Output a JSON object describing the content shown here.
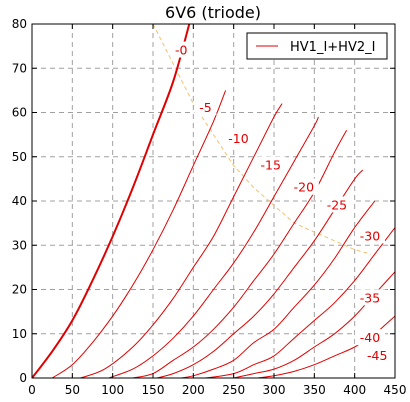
{
  "chart_data": {
    "type": "line",
    "title": "6V6  (triode)",
    "xlim": [
      0,
      450
    ],
    "ylim": [
      0,
      80
    ],
    "x_ticks": [
      "0",
      "50",
      "100",
      "150",
      "200",
      "250",
      "300",
      "350",
      "400",
      "450"
    ],
    "y_ticks": [
      "0",
      "10",
      "20",
      "30",
      "40",
      "50",
      "60",
      "70",
      "80"
    ],
    "grid": true,
    "legend": {
      "position": "top-right",
      "entries": [
        "HV1_I+HV2_I"
      ]
    },
    "colors": {
      "curves": "#e00000",
      "load_line": "#f0c070",
      "grid": "#a0a0a0"
    },
    "series": [
      {
        "label": "-0",
        "points": [
          [
            0,
            0
          ],
          [
            25,
            6
          ],
          [
            50,
            13
          ],
          [
            75,
            22
          ],
          [
            100,
            32
          ],
          [
            125,
            43
          ],
          [
            150,
            55
          ],
          [
            175,
            67
          ],
          [
            195,
            80
          ]
        ]
      },
      {
        "label": "-5",
        "points": [
          [
            25,
            0
          ],
          [
            50,
            3
          ],
          [
            75,
            8
          ],
          [
            100,
            14
          ],
          [
            125,
            21
          ],
          [
            150,
            29
          ],
          [
            175,
            38
          ],
          [
            200,
            48
          ],
          [
            225,
            58
          ],
          [
            240,
            65
          ]
        ]
      },
      {
        "label": "-10",
        "points": [
          [
            60,
            0
          ],
          [
            90,
            2
          ],
          [
            125,
            7
          ],
          [
            150,
            12
          ],
          [
            175,
            18
          ],
          [
            200,
            25
          ],
          [
            225,
            32
          ],
          [
            250,
            41
          ],
          [
            275,
            50
          ],
          [
            300,
            59
          ],
          [
            310,
            62
          ]
        ]
      },
      {
        "label": "-15",
        "points": [
          [
            95,
            0
          ],
          [
            125,
            2
          ],
          [
            150,
            5
          ],
          [
            175,
            9
          ],
          [
            200,
            14
          ],
          [
            225,
            20
          ],
          [
            250,
            26
          ],
          [
            275,
            33
          ],
          [
            300,
            41
          ],
          [
            325,
            49
          ],
          [
            350,
            57
          ],
          [
            355,
            59
          ]
        ]
      },
      {
        "label": "-20",
        "points": [
          [
            125,
            0
          ],
          [
            150,
            1
          ],
          [
            175,
            4
          ],
          [
            200,
            7
          ],
          [
            225,
            11
          ],
          [
            250,
            16
          ],
          [
            275,
            22
          ],
          [
            300,
            28
          ],
          [
            325,
            35
          ],
          [
            350,
            42
          ],
          [
            375,
            51
          ],
          [
            390,
            56
          ]
        ]
      },
      {
        "label": "-25",
        "points": [
          [
            155,
            0
          ],
          [
            175,
            1
          ],
          [
            200,
            3
          ],
          [
            225,
            6
          ],
          [
            250,
            10
          ],
          [
            275,
            14
          ],
          [
            300,
            19
          ],
          [
            325,
            25
          ],
          [
            350,
            31
          ],
          [
            375,
            38
          ],
          [
            400,
            45
          ],
          [
            410,
            47
          ]
        ]
      },
      {
        "label": "-30",
        "points": [
          [
            185,
            0
          ],
          [
            200,
            0.5
          ],
          [
            225,
            2
          ],
          [
            250,
            4
          ],
          [
            275,
            8
          ],
          [
            300,
            11
          ],
          [
            325,
            16
          ],
          [
            350,
            21
          ],
          [
            375,
            27
          ],
          [
            400,
            34
          ],
          [
            425,
            40
          ]
        ]
      },
      {
        "label": "-35",
        "points": [
          [
            215,
            0
          ],
          [
            250,
            1
          ],
          [
            275,
            3
          ],
          [
            300,
            5
          ],
          [
            325,
            9
          ],
          [
            350,
            13
          ],
          [
            375,
            17
          ],
          [
            400,
            22
          ],
          [
            425,
            28
          ],
          [
            450,
            34
          ]
        ]
      },
      {
        "label": "-40",
        "points": [
          [
            250,
            0
          ],
          [
            275,
            1
          ],
          [
            300,
            2
          ],
          [
            325,
            4
          ],
          [
            350,
            7
          ],
          [
            375,
            10
          ],
          [
            400,
            14
          ],
          [
            425,
            19
          ],
          [
            450,
            24
          ]
        ]
      },
      {
        "label": "-45",
        "points": [
          [
            280,
            0
          ],
          [
            300,
            0.5
          ],
          [
            325,
            1.5
          ],
          [
            350,
            3
          ],
          [
            375,
            5
          ],
          [
            400,
            7
          ],
          [
            425,
            10
          ],
          [
            450,
            14
          ]
        ]
      }
    ],
    "curve_labels": [
      {
        "text": "-0",
        "x": 185,
        "y": 74
      },
      {
        "text": "-5",
        "x": 215,
        "y": 61
      },
      {
        "text": "-10",
        "x": 256,
        "y": 54
      },
      {
        "text": "-15",
        "x": 296,
        "y": 48
      },
      {
        "text": "-20",
        "x": 337,
        "y": 43
      },
      {
        "text": "-25",
        "x": 378,
        "y": 39
      },
      {
        "text": "-30",
        "x": 419,
        "y": 32
      },
      {
        "text": "-35",
        "x": 419,
        "y": 18
      },
      {
        "text": "-40",
        "x": 419,
        "y": 9
      },
      {
        "text": "-45",
        "x": 428,
        "y": 5
      }
    ],
    "load_line": [
      [
        150,
        80
      ],
      [
        175,
        71
      ],
      [
        200,
        62
      ],
      [
        225,
        55
      ],
      [
        250,
        48
      ],
      [
        275,
        43
      ],
      [
        300,
        39
      ],
      [
        325,
        35
      ],
      [
        350,
        33
      ],
      [
        375,
        31
      ],
      [
        400,
        29
      ],
      [
        420,
        28
      ]
    ]
  }
}
